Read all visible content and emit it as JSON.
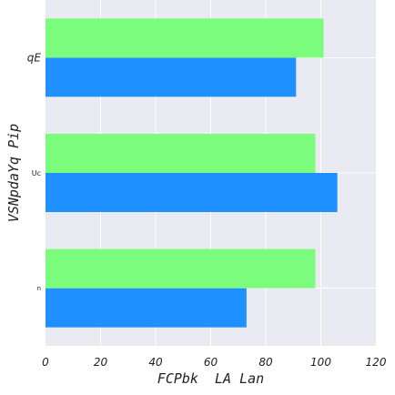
{
  "chart_data": {
    "type": "bar",
    "orientation": "horizontal",
    "title": "",
    "xlabel": "FCPbk  LA Lan",
    "ylabel": "VSNpdaYq Pip",
    "categories": [
      "qE",
      "Uc",
      "n"
    ],
    "series": [
      {
        "color": "#1e90ff",
        "values": [
          91,
          106,
          73
        ]
      },
      {
        "color": "#7cfc7c",
        "values": [
          101,
          98,
          98
        ]
      }
    ],
    "xlim": [
      0,
      120
    ],
    "xticks": [
      0,
      20,
      40,
      60,
      80,
      100,
      120
    ],
    "grid": true,
    "legend": "none",
    "background": "#eaeaf2"
  }
}
